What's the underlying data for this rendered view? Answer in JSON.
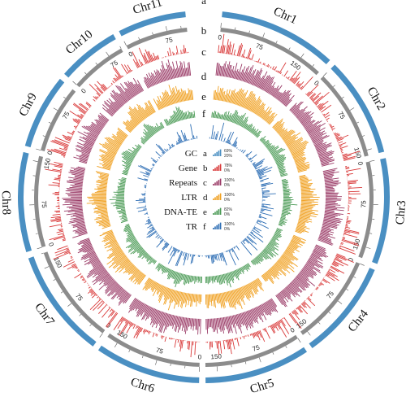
{
  "chromosomes": [
    {
      "name": "Chr1",
      "length": 190,
      "ticks": [
        {
          "v": 0,
          "label": "0"
        },
        {
          "v": 75,
          "label": "75"
        },
        {
          "v": 150,
          "label": "150"
        }
      ]
    },
    {
      "name": "Chr2",
      "length": 160,
      "ticks": [
        {
          "v": 0,
          "label": "0"
        },
        {
          "v": 75,
          "label": "75"
        },
        {
          "v": 150,
          "label": "150"
        }
      ]
    },
    {
      "name": "Chr3",
      "length": 170,
      "ticks": [
        {
          "v": 0,
          "label": "0"
        },
        {
          "v": 75,
          "label": "75"
        },
        {
          "v": 150,
          "label": "150"
        }
      ]
    },
    {
      "name": "Chr4",
      "length": 160,
      "ticks": [
        {
          "v": 0,
          "label": "0"
        },
        {
          "v": 75,
          "label": "75"
        },
        {
          "v": 150,
          "label": "150"
        }
      ]
    },
    {
      "name": "Chr5",
      "length": 170,
      "ticks": [
        {
          "v": 0,
          "label": "0"
        },
        {
          "v": 75,
          "label": "75"
        },
        {
          "v": 150,
          "label": "150"
        }
      ]
    },
    {
      "name": "Chr6",
      "length": 170,
      "ticks": [
        {
          "v": 0,
          "label": "0"
        },
        {
          "v": 75,
          "label": "75"
        },
        {
          "v": 150,
          "label": "150"
        }
      ]
    },
    {
      "name": "Chr7",
      "length": 175,
      "ticks": [
        {
          "v": 0,
          "label": "0"
        },
        {
          "v": 75,
          "label": "75"
        },
        {
          "v": 150,
          "label": "150"
        }
      ]
    },
    {
      "name": "Chr8",
      "length": 160,
      "ticks": [
        {
          "v": 0,
          "label": "0"
        },
        {
          "v": 75,
          "label": "75"
        },
        {
          "v": 150,
          "label": "150"
        }
      ]
    },
    {
      "name": "Chr9",
      "length": 120,
      "ticks": [
        {
          "v": 0,
          "label": "0"
        },
        {
          "v": 75,
          "label": "75"
        }
      ]
    },
    {
      "name": "Chr10",
      "length": 100,
      "ticks": [
        {
          "v": 0,
          "label": "0"
        },
        {
          "v": 75,
          "label": "75"
        }
      ]
    },
    {
      "name": "Chr11",
      "length": 110,
      "ticks": [
        {
          "v": 0,
          "label": "0"
        },
        {
          "v": 75,
          "label": "75"
        }
      ]
    }
  ],
  "tracks": [
    {
      "letter": "a",
      "name": "GC",
      "color": "#4a8fc2",
      "max_label": "69%",
      "min_label": "20%"
    },
    {
      "letter": "b",
      "name": "Gene",
      "color": "#d93a3a",
      "max_label": "78%",
      "min_label": "0%"
    },
    {
      "letter": "c",
      "name": "Repeats",
      "color": "#9a3a66",
      "max_label": "100%",
      "min_label": "0%"
    },
    {
      "letter": "d",
      "name": "LTR",
      "color": "#f0a020",
      "max_label": "100%",
      "min_label": "0%"
    },
    {
      "letter": "e",
      "name": "DNA-TE",
      "color": "#4a9a55",
      "max_label": "82%",
      "min_label": "0%"
    },
    {
      "letter": "f",
      "name": "TR",
      "color": "#2f6fb5",
      "max_label": "100%",
      "min_label": "0%"
    }
  ],
  "ideogram_color": "#4a8fc2",
  "scale_ring_color": "#8c8c8c"
}
